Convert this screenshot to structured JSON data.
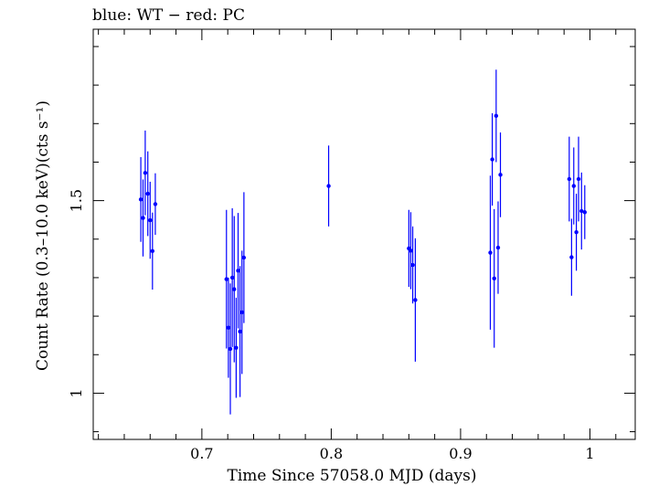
{
  "chart_data": {
    "type": "scatter",
    "title": "blue: WT − red: PC",
    "xlabel": "Time Since 57058.0 MJD (days)",
    "ylabel": "Count Rate (0.3–10.0 keV)(cts s⁻¹)",
    "xlim": [
      0.616,
      1.035
    ],
    "ylim": [
      0.88,
      1.945
    ],
    "x_ticks": [
      {
        "value": 0.7,
        "label": "0.7"
      },
      {
        "value": 0.8,
        "label": "0.8"
      },
      {
        "value": 0.9,
        "label": "0.9"
      },
      {
        "value": 1.0,
        "label": "1"
      }
    ],
    "y_ticks": [
      {
        "value": 1.0,
        "label": "1"
      },
      {
        "value": 1.5,
        "label": "1.5"
      }
    ],
    "series": [
      {
        "name": "WT",
        "color": "#0000ff",
        "points": [
          {
            "x": 0.6528,
            "y": 1.503,
            "err": 0.11
          },
          {
            "x": 0.6545,
            "y": 1.455,
            "err": 0.1
          },
          {
            "x": 0.6562,
            "y": 1.572,
            "err": 0.11
          },
          {
            "x": 0.6582,
            "y": 1.518,
            "err": 0.11
          },
          {
            "x": 0.66,
            "y": 1.449,
            "err": 0.1
          },
          {
            "x": 0.6618,
            "y": 1.369,
            "err": 0.1
          },
          {
            "x": 0.664,
            "y": 1.491,
            "err": 0.08
          },
          {
            "x": 0.719,
            "y": 1.296,
            "err": 0.18
          },
          {
            "x": 0.7205,
            "y": 1.17,
            "err": 0.13
          },
          {
            "x": 0.722,
            "y": 1.115,
            "err": 0.17
          },
          {
            "x": 0.7235,
            "y": 1.3,
            "err": 0.18
          },
          {
            "x": 0.725,
            "y": 1.27,
            "err": 0.19
          },
          {
            "x": 0.7265,
            "y": 1.118,
            "err": 0.13
          },
          {
            "x": 0.728,
            "y": 1.318,
            "err": 0.15
          },
          {
            "x": 0.7295,
            "y": 1.16,
            "err": 0.17
          },
          {
            "x": 0.731,
            "y": 1.21,
            "err": 0.16
          },
          {
            "x": 0.7325,
            "y": 1.352,
            "err": 0.17
          },
          {
            "x": 0.798,
            "y": 1.538,
            "err": 0.105
          },
          {
            "x": 0.86,
            "y": 1.376,
            "err": 0.1
          },
          {
            "x": 0.8615,
            "y": 1.37,
            "err": 0.1
          },
          {
            "x": 0.863,
            "y": 1.333,
            "err": 0.1
          },
          {
            "x": 0.865,
            "y": 1.242,
            "err": 0.16
          },
          {
            "x": 0.923,
            "y": 1.365,
            "err": 0.2
          },
          {
            "x": 0.9245,
            "y": 1.607,
            "err": 0.12
          },
          {
            "x": 0.926,
            "y": 1.298,
            "err": 0.18
          },
          {
            "x": 0.9275,
            "y": 1.72,
            "err": 0.12
          },
          {
            "x": 0.929,
            "y": 1.378,
            "err": 0.12
          },
          {
            "x": 0.9308,
            "y": 1.567,
            "err": 0.11
          },
          {
            "x": 0.984,
            "y": 1.556,
            "err": 0.11
          },
          {
            "x": 0.9858,
            "y": 1.353,
            "err": 0.1
          },
          {
            "x": 0.9875,
            "y": 1.538,
            "err": 0.1
          },
          {
            "x": 0.9895,
            "y": 1.418,
            "err": 0.1
          },
          {
            "x": 0.9912,
            "y": 1.556,
            "err": 0.11
          },
          {
            "x": 0.9935,
            "y": 1.473,
            "err": 0.1
          },
          {
            "x": 0.996,
            "y": 1.47,
            "err": 0.07
          }
        ]
      }
    ]
  }
}
